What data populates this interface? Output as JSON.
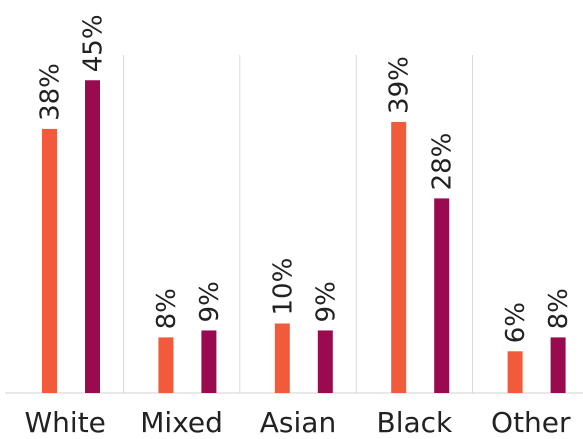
{
  "chart_data": {
    "type": "bar",
    "categories": [
      "White",
      "Mixed",
      "Asian",
      "Black",
      "Other"
    ],
    "series": [
      {
        "values": [
          38,
          8,
          10,
          39,
          6
        ],
        "labels": [
          "38%",
          "8%",
          "10%",
          "39%",
          "6%"
        ],
        "color": "#f15a3a"
      },
      {
        "values": [
          45,
          9,
          9,
          28,
          8
        ],
        "labels": [
          "45%",
          "9%",
          "9%",
          "28%",
          "8%"
        ],
        "color": "#990a4f"
      }
    ],
    "ylim": [
      0,
      50
    ],
    "grid": false,
    "category_separators": true,
    "legend": "none"
  }
}
